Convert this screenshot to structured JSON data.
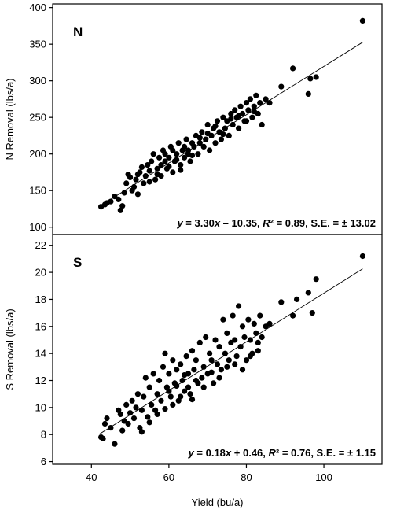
{
  "chart_data": {
    "type": "scatter",
    "xlabel": "Yield (bu/a)",
    "xlim": [
      30,
      115
    ],
    "xticks": [
      40,
      60,
      80,
      100
    ],
    "panels": [
      {
        "letter": "N",
        "ylabel": "N Removal (lbs/a)",
        "ylim": [
          90,
          405
        ],
        "yticks": [
          100,
          150,
          200,
          250,
          300,
          350,
          400
        ],
        "equation_prefix": "y",
        "equation_body": " = 3.30",
        "equation_x": "x",
        "equation_mid": " – 10.35, ",
        "equation_r": "R",
        "equation_rest": "² = 0.89, S.E. = ± 13.02",
        "fit": {
          "slope": 3.3,
          "intercept": -10.35,
          "x_from": 42,
          "x_to": 110
        },
        "points": [
          [
            42.5,
            128
          ],
          [
            43.5,
            131
          ],
          [
            44,
            133
          ],
          [
            45,
            135
          ],
          [
            46,
            142
          ],
          [
            47,
            138
          ],
          [
            47.5,
            123
          ],
          [
            48,
            129
          ],
          [
            48.5,
            147
          ],
          [
            49,
            160
          ],
          [
            49.5,
            172
          ],
          [
            50,
            168
          ],
          [
            50.5,
            150
          ],
          [
            51,
            155
          ],
          [
            51.5,
            165
          ],
          [
            52,
            172
          ],
          [
            52.5,
            175
          ],
          [
            53,
            182
          ],
          [
            53.5,
            160
          ],
          [
            54,
            170
          ],
          [
            54.5,
            185
          ],
          [
            55,
            177
          ],
          [
            55.5,
            190
          ],
          [
            56,
            200
          ],
          [
            56.5,
            165
          ],
          [
            57,
            180
          ],
          [
            57.5,
            195
          ],
          [
            58,
            185
          ],
          [
            58.5,
            205
          ],
          [
            59,
            190
          ],
          [
            59.5,
            180
          ],
          [
            60,
            195
          ],
          [
            60.5,
            210
          ],
          [
            61,
            175
          ],
          [
            61.5,
            190
          ],
          [
            62,
            200
          ],
          [
            62.5,
            215
          ],
          [
            63,
            185
          ],
          [
            63.5,
            205
          ],
          [
            64,
            195
          ],
          [
            64.5,
            220
          ],
          [
            65,
            205
          ],
          [
            65.5,
            190
          ],
          [
            66,
            215
          ],
          [
            66.5,
            210
          ],
          [
            67,
            225
          ],
          [
            67.5,
            200
          ],
          [
            68,
            215
          ],
          [
            68.5,
            230
          ],
          [
            69,
            210
          ],
          [
            69.5,
            220
          ],
          [
            70,
            240
          ],
          [
            70.5,
            205
          ],
          [
            71,
            225
          ],
          [
            71.5,
            235
          ],
          [
            72,
            215
          ],
          [
            72.5,
            245
          ],
          [
            73,
            230
          ],
          [
            73.5,
            220
          ],
          [
            74,
            250
          ],
          [
            74.5,
            235
          ],
          [
            75,
            245
          ],
          [
            75.5,
            225
          ],
          [
            76,
            255
          ],
          [
            76.5,
            240
          ],
          [
            77,
            260
          ],
          [
            77.5,
            250
          ],
          [
            78,
            235
          ],
          [
            78.5,
            265
          ],
          [
            79,
            255
          ],
          [
            79.5,
            245
          ],
          [
            80,
            270
          ],
          [
            80.5,
            260
          ],
          [
            81,
            275
          ],
          [
            81.5,
            250
          ],
          [
            82,
            265
          ],
          [
            82.5,
            280
          ],
          [
            83,
            255
          ],
          [
            83.5,
            270
          ],
          [
            84,
            240
          ],
          [
            85,
            275
          ],
          [
            86,
            270
          ],
          [
            89,
            292
          ],
          [
            92,
            317
          ],
          [
            96,
            282
          ],
          [
            96.5,
            303
          ],
          [
            98,
            305
          ],
          [
            110,
            382
          ],
          [
            52,
            145
          ],
          [
            55,
            162
          ],
          [
            58,
            170
          ],
          [
            60,
            183
          ],
          [
            62,
            192
          ],
          [
            64,
            210
          ],
          [
            66,
            198
          ],
          [
            68,
            222
          ],
          [
            70,
            228
          ],
          [
            72,
            238
          ],
          [
            74,
            227
          ],
          [
            76,
            248
          ],
          [
            78,
            252
          ],
          [
            80,
            245
          ],
          [
            82,
            258
          ],
          [
            63,
            178
          ],
          [
            65,
            200
          ],
          [
            59,
            200
          ],
          [
            57,
            172
          ],
          [
            61,
            205
          ]
        ]
      },
      {
        "letter": "S",
        "ylabel": "S Removal (lbs/a)",
        "ylim": [
          5.8,
          22.8
        ],
        "yticks": [
          6,
          8,
          10,
          12,
          14,
          16,
          18,
          20,
          22
        ],
        "equation_prefix": "y",
        "equation_body": " = 0.18",
        "equation_x": "x",
        "equation_mid": " + 0.46, ",
        "equation_r": "R",
        "equation_rest": "² = 0.76, S.E. = ± 1.15",
        "fit": {
          "slope": 0.18,
          "intercept": 0.46,
          "x_from": 42,
          "x_to": 110
        },
        "points": [
          [
            42.5,
            7.8
          ],
          [
            43,
            7.7
          ],
          [
            43.5,
            8.8
          ],
          [
            44,
            9.2
          ],
          [
            45,
            8.5
          ],
          [
            46,
            7.3
          ],
          [
            47,
            9.8
          ],
          [
            47.5,
            9.5
          ],
          [
            48,
            8.3
          ],
          [
            48.5,
            9.0
          ],
          [
            49,
            10.2
          ],
          [
            49.5,
            8.8
          ],
          [
            50,
            9.6
          ],
          [
            50.5,
            10.5
          ],
          [
            51,
            9.2
          ],
          [
            51.5,
            10.0
          ],
          [
            52,
            11.0
          ],
          [
            52.5,
            8.5
          ],
          [
            53,
            9.8
          ],
          [
            53.5,
            10.8
          ],
          [
            54,
            12.2
          ],
          [
            54.5,
            9.3
          ],
          [
            55,
            11.5
          ],
          [
            55.5,
            10.2
          ],
          [
            56,
            12.5
          ],
          [
            56.5,
            9.8
          ],
          [
            57,
            11.0
          ],
          [
            57.5,
            12.0
          ],
          [
            58,
            10.5
          ],
          [
            58.5,
            13.0
          ],
          [
            59,
            14.0
          ],
          [
            59.5,
            11.5
          ],
          [
            60,
            12.5
          ],
          [
            60.5,
            10.8
          ],
          [
            61,
            13.5
          ],
          [
            61.5,
            11.8
          ],
          [
            62,
            12.8
          ],
          [
            62.5,
            10.5
          ],
          [
            63,
            13.2
          ],
          [
            63.5,
            12.0
          ],
          [
            64,
            11.2
          ],
          [
            64.5,
            13.8
          ],
          [
            65,
            12.5
          ],
          [
            65.5,
            11.0
          ],
          [
            66,
            14.2
          ],
          [
            66.5,
            12.8
          ],
          [
            67,
            13.5
          ],
          [
            67.5,
            11.8
          ],
          [
            68,
            14.8
          ],
          [
            68.5,
            12.2
          ],
          [
            69,
            13.0
          ],
          [
            69.5,
            15.2
          ],
          [
            70,
            12.5
          ],
          [
            70.5,
            14.0
          ],
          [
            71,
            13.5
          ],
          [
            71.5,
            11.8
          ],
          [
            72,
            15.0
          ],
          [
            72.5,
            13.2
          ],
          [
            73,
            14.5
          ],
          [
            73.5,
            12.8
          ],
          [
            74,
            16.5
          ],
          [
            74.5,
            14.0
          ],
          [
            75,
            15.5
          ],
          [
            75.5,
            13.5
          ],
          [
            76,
            14.8
          ],
          [
            76.5,
            16.8
          ],
          [
            77,
            15.0
          ],
          [
            77.5,
            13.8
          ],
          [
            78,
            17.5
          ],
          [
            78.5,
            14.5
          ],
          [
            79,
            16.0
          ],
          [
            79.5,
            15.2
          ],
          [
            80,
            13.5
          ],
          [
            80.5,
            16.5
          ],
          [
            81,
            15.0
          ],
          [
            81.5,
            14.0
          ],
          [
            82,
            16.2
          ],
          [
            82.5,
            15.5
          ],
          [
            83,
            14.8
          ],
          [
            83.5,
            16.8
          ],
          [
            84,
            15.2
          ],
          [
            85,
            16.0
          ],
          [
            86,
            16.2
          ],
          [
            89,
            17.8
          ],
          [
            92,
            16.8
          ],
          [
            93,
            18.0
          ],
          [
            96,
            18.5
          ],
          [
            97,
            17.0
          ],
          [
            98,
            19.5
          ],
          [
            110,
            21.2
          ],
          [
            53,
            8.2
          ],
          [
            55,
            8.9
          ],
          [
            57,
            9.5
          ],
          [
            59,
            9.9
          ],
          [
            61,
            10.2
          ],
          [
            63,
            10.8
          ],
          [
            65,
            11.5
          ],
          [
            67,
            12.0
          ],
          [
            69,
            11.5
          ],
          [
            71,
            12.6
          ],
          [
            73,
            12.2
          ],
          [
            75,
            13.0
          ],
          [
            77,
            13.2
          ],
          [
            79,
            12.8
          ],
          [
            81,
            13.8
          ],
          [
            83,
            14.2
          ],
          [
            60,
            11.2
          ],
          [
            62,
            11.6
          ],
          [
            64,
            12.4
          ],
          [
            66,
            10.6
          ]
        ]
      }
    ]
  }
}
